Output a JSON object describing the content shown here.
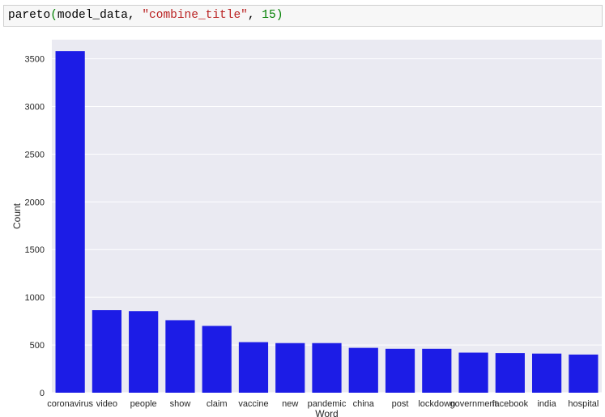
{
  "code_cell": {
    "func": "pareto",
    "open_paren": "(",
    "arg1": "model_data, ",
    "arg2": "\"combine_title\"",
    "sep": ", ",
    "arg3": "15",
    "close_paren": ")"
  },
  "colors": {
    "bar": "#1c1ce6",
    "plot_background": "#eaeaf2",
    "grid": "#ffffff"
  },
  "chart_data": {
    "type": "bar",
    "categories": [
      "coronavirus",
      "video",
      "people",
      "show",
      "claim",
      "vaccine",
      "new",
      "pandemic",
      "china",
      "post",
      "lockdown",
      "government",
      "facebook",
      "india",
      "hospital"
    ],
    "values": [
      3580,
      865,
      855,
      760,
      700,
      530,
      520,
      520,
      470,
      460,
      460,
      420,
      415,
      410,
      400
    ],
    "xlabel": "Word",
    "ylabel": "Count",
    "ylim": [
      0,
      3700
    ],
    "yticks": [
      0,
      500,
      1000,
      1500,
      2000,
      2500,
      3000,
      3500
    ],
    "grid": true
  }
}
